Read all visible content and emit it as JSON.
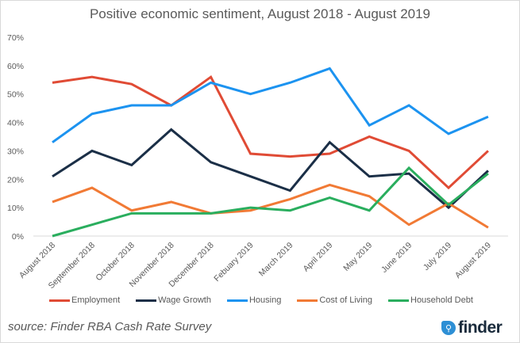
{
  "chart_data": {
    "type": "line",
    "title": "Positive economic sentiment, August 2018 - August 2019",
    "xlabel": "",
    "ylabel": "",
    "ylim": [
      0,
      70
    ],
    "yticks": [
      "0%",
      "10%",
      "20%",
      "30%",
      "40%",
      "50%",
      "60%",
      "70%"
    ],
    "ytick_values": [
      0,
      10,
      20,
      30,
      40,
      50,
      60,
      70
    ],
    "grid": false,
    "legend_position": "bottom",
    "categories": [
      "August 2018",
      "September 2018",
      "October 2018",
      "November 2018",
      "December 2018",
      "Febuary 2019",
      "March 2019",
      "April 2019",
      "May 2019",
      "June 2019",
      "July 2019",
      "August 2019"
    ],
    "series": [
      {
        "name": "Employment",
        "color": "#e04b35",
        "values": [
          54,
          56,
          53.5,
          46,
          56,
          29,
          28,
          29,
          35,
          30,
          17,
          30
        ]
      },
      {
        "name": "Wage Growth",
        "color": "#1b2f47",
        "values": [
          21,
          30,
          25,
          37.5,
          26,
          21,
          16,
          33,
          21,
          22,
          10,
          23
        ]
      },
      {
        "name": "Housing",
        "color": "#1c93f0",
        "values": [
          33,
          43,
          46,
          46,
          54,
          50,
          54,
          59,
          39,
          46,
          36,
          42
        ]
      },
      {
        "name": "Cost of Living",
        "color": "#f17a35",
        "values": [
          12,
          17,
          9,
          12,
          8,
          9,
          13,
          18,
          14,
          4,
          11.5,
          3
        ]
      },
      {
        "name": "Household Debt",
        "color": "#2aae5e",
        "values": [
          0,
          4,
          8,
          8,
          8,
          10,
          9,
          13.5,
          9,
          24,
          11,
          22
        ]
      }
    ]
  },
  "footer": {
    "source": "source: Finder RBA Cash Rate Survey",
    "logo_text": "finder",
    "logo_icon": "search-icon"
  }
}
